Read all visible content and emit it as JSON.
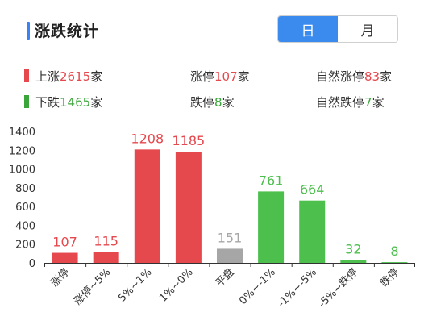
{
  "header": {
    "title": "涨跌统计",
    "toggle": [
      {
        "label": "日",
        "active": true
      },
      {
        "label": "月",
        "active": false
      }
    ]
  },
  "stats": {
    "row1": [
      {
        "label": "上涨",
        "value": "2615",
        "unit": "家",
        "swatch": "#e5484d",
        "color": "#e5484d"
      },
      {
        "label": "涨停",
        "value": "107",
        "unit": "家",
        "color": "#e5484d"
      },
      {
        "label": "自然涨停",
        "value": "83",
        "unit": "家",
        "color": "#e5484d"
      }
    ],
    "row2": [
      {
        "label": "下跌",
        "value": "1465",
        "unit": "家",
        "swatch": "#3aa63a",
        "color": "#3aa63a"
      },
      {
        "label": "跌停",
        "value": "8",
        "unit": "家",
        "color": "#3aa63a"
      },
      {
        "label": "自然跌停",
        "value": "7",
        "unit": "家",
        "color": "#3aa63a"
      }
    ]
  },
  "colors": {
    "up": "#e5484d",
    "flat": "#a6a6a6",
    "down": "#4cbf4c",
    "accent": "#3b8aee"
  },
  "chart_data": {
    "type": "bar",
    "title": "",
    "xlabel": "",
    "ylabel": "",
    "ylim": [
      0,
      1400
    ],
    "yticks": [
      0,
      200,
      400,
      600,
      800,
      1000,
      1200,
      1400
    ],
    "grid": false,
    "categories": [
      "涨停",
      "涨停~5%",
      "5%~1%",
      "1%~0%",
      "平盘",
      "0%~-1%",
      "-1%~-5%",
      "-5%~跌停",
      "跌停"
    ],
    "values": [
      107,
      115,
      1208,
      1185,
      151,
      761,
      664,
      32,
      8
    ],
    "bar_colors": [
      "up",
      "up",
      "up",
      "up",
      "flat",
      "down",
      "down",
      "down",
      "down"
    ]
  }
}
